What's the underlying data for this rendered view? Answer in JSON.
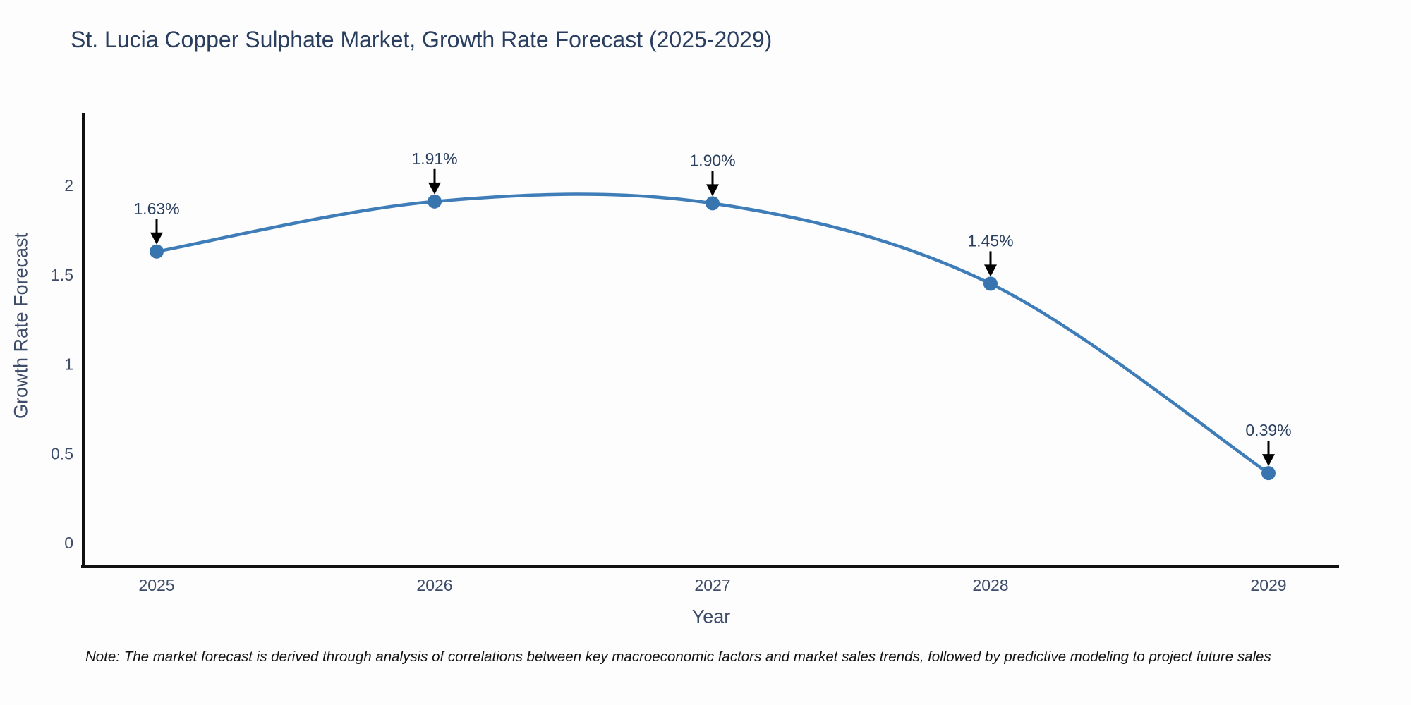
{
  "title": "St. Lucia Copper Sulphate Market, Growth Rate Forecast (2025-2029)",
  "footnote": "Note: The market forecast is derived through analysis of correlations between key macroeconomic factors and market sales trends, followed by predictive modeling to project future sales",
  "chart_data": {
    "type": "line",
    "title": "St. Lucia Copper Sulphate Market, Growth Rate Forecast (2025-2029)",
    "xlabel": "Year",
    "ylabel": "Growth Rate Forecast",
    "x": [
      2025,
      2026,
      2027,
      2028,
      2029
    ],
    "categories": [
      "2025",
      "2026",
      "2027",
      "2028",
      "2029"
    ],
    "values": [
      1.63,
      1.91,
      1.9,
      1.45,
      0.39
    ],
    "point_labels": [
      "1.63%",
      "1.91%",
      "1.90%",
      "1.45%",
      "0.39%"
    ],
    "ytick_values": [
      0,
      0.5,
      1,
      1.5,
      2
    ],
    "ytick_labels": [
      "0",
      "0.5",
      "1",
      "1.5",
      "2"
    ],
    "ylim": [
      -0.14,
      2.42
    ],
    "line_shape": "spline",
    "grid": false,
    "legend_position": "none",
    "colors": {
      "line": "#3f7db8",
      "marker": "#3875ae",
      "axis_line": "#111111",
      "title_text": "#2a3f5f",
      "tick_text": "#3d4c68",
      "annotation_text": "#2a3f5f",
      "arrow": "#000000",
      "background": "#fdfdfe"
    }
  }
}
